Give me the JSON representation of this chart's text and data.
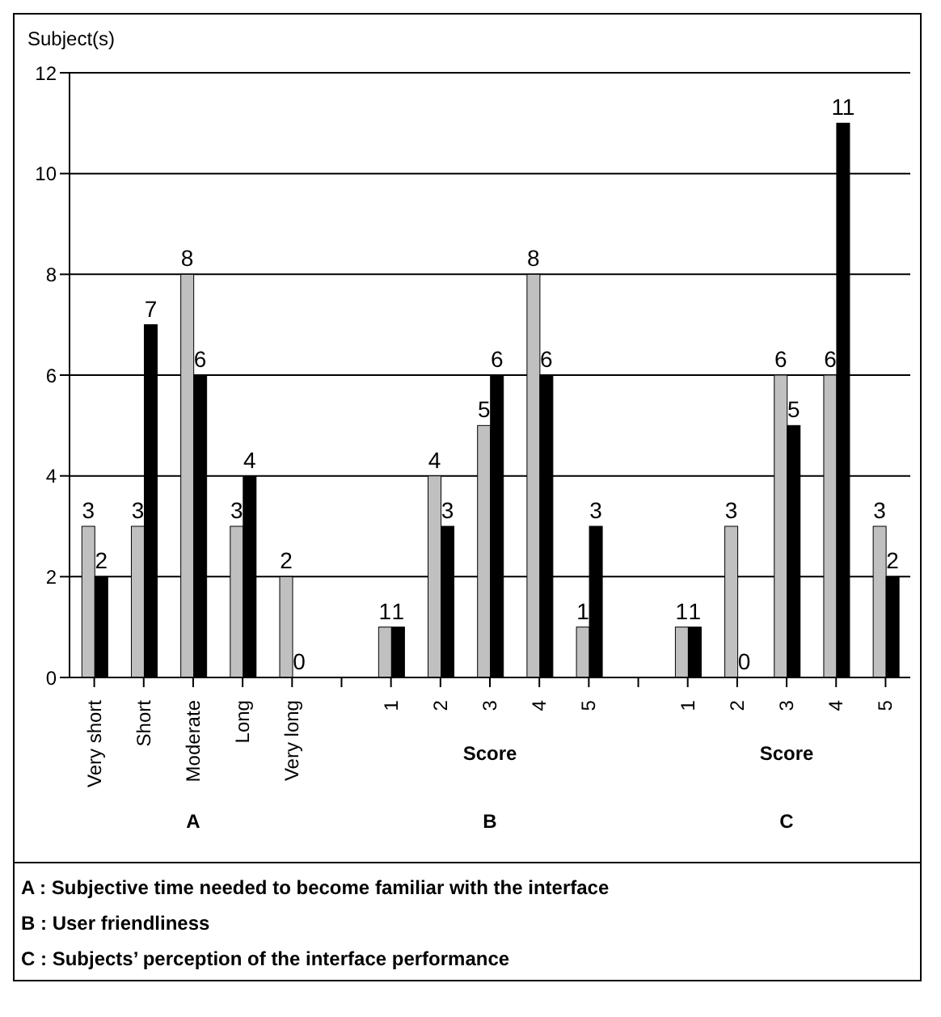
{
  "chart_data": {
    "type": "bar",
    "ylabel": "Subject(s)",
    "categories": [
      "Very short",
      "Short",
      "Moderate",
      "Long",
      "Very long",
      null,
      "1",
      "2",
      "3",
      "4",
      "5",
      null,
      "1",
      "2",
      "3",
      "4",
      "5"
    ],
    "series": [
      {
        "color": "#c0c0c0",
        "values": [
          3,
          3,
          8,
          3,
          2,
          null,
          1,
          4,
          5,
          8,
          1,
          null,
          1,
          3,
          6,
          6,
          3
        ]
      },
      {
        "color": "#000000",
        "values": [
          2,
          7,
          6,
          4,
          0,
          null,
          1,
          3,
          6,
          6,
          3,
          null,
          1,
          0,
          5,
          11,
          2
        ]
      }
    ],
    "ylim": [
      0,
      12
    ],
    "yticks": [
      0,
      2,
      4,
      6,
      8,
      10,
      12
    ],
    "grid": "y",
    "data_labels": true,
    "annotations": [
      "Score",
      "Score",
      "A",
      "B",
      "C",
      "A : Subjective time needed to become familiar with the interface",
      "B : User friendliness",
      "C : Subjects’ perception of the interface performance"
    ]
  }
}
